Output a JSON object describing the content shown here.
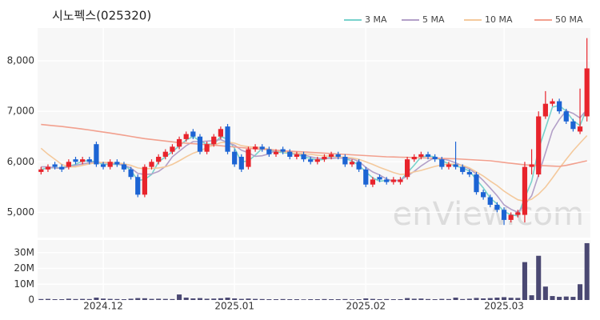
{
  "chart_data": {
    "type": "candlestick",
    "title": "시노펙스(025320)",
    "watermark": "enView.com",
    "categories": [
      null,
      null,
      null,
      null,
      null,
      null,
      null,
      null,
      null,
      "2024.12",
      null,
      null,
      null,
      null,
      null,
      null,
      null,
      null,
      null,
      null,
      null,
      null,
      null,
      null,
      null,
      null,
      null,
      null,
      "2025.01",
      null,
      null,
      null,
      null,
      null,
      null,
      null,
      null,
      null,
      null,
      null,
      null,
      null,
      null,
      null,
      null,
      null,
      null,
      "2025.02",
      null,
      null,
      null,
      null,
      null,
      null,
      null,
      null,
      null,
      null,
      null,
      null,
      null,
      null,
      null,
      null,
      null,
      null,
      null,
      "2025.03",
      null,
      null,
      null,
      null,
      null,
      null,
      null,
      null,
      null,
      null,
      null,
      null
    ],
    "open": [
      5800,
      5850,
      5950,
      5900,
      5900,
      6050,
      6000,
      6050,
      6350,
      5950,
      5900,
      6000,
      5950,
      5850,
      5700,
      5350,
      5900,
      6000,
      6100,
      6200,
      6300,
      6450,
      6600,
      6500,
      6200,
      6350,
      6500,
      6700,
      6200,
      6100,
      5900,
      6250,
      6300,
      6250,
      6150,
      6250,
      6200,
      6100,
      6150,
      6050,
      6000,
      6050,
      6100,
      6150,
      6100,
      5950,
      6000,
      5850,
      5550,
      5700,
      5650,
      5600,
      5600,
      5700,
      6050,
      6100,
      6150,
      6100,
      6050,
      5900,
      5950,
      5900,
      5800,
      5750,
      5400,
      5300,
      5150,
      5050,
      4850,
      4950,
      4950,
      5900,
      5750,
      6900,
      7150,
      7200,
      7000,
      6800,
      6600,
      6900
    ],
    "high": [
      5900,
      5950,
      6000,
      5950,
      6050,
      6100,
      6100,
      6100,
      6400,
      6000,
      6050,
      6050,
      6000,
      5900,
      5750,
      5950,
      6050,
      6150,
      6250,
      6350,
      6500,
      6600,
      6650,
      6550,
      6400,
      6550,
      6700,
      6750,
      6250,
      6150,
      6300,
      6350,
      6350,
      6300,
      6250,
      6300,
      6250,
      6200,
      6200,
      6100,
      6100,
      6150,
      6200,
      6200,
      6150,
      6050,
      6050,
      5900,
      5700,
      5750,
      5700,
      5700,
      5700,
      6100,
      6150,
      6200,
      6200,
      6150,
      6100,
      6000,
      6400,
      5950,
      5850,
      5800,
      5450,
      5350,
      5200,
      5100,
      5000,
      5050,
      6000,
      6250,
      7000,
      7400,
      7250,
      7250,
      7050,
      6850,
      7450,
      8450
    ],
    "low": [
      5750,
      5800,
      5850,
      5800,
      5850,
      5950,
      5950,
      5950,
      5900,
      5850,
      5850,
      5900,
      5800,
      5650,
      5300,
      5300,
      5850,
      5950,
      6050,
      6150,
      6250,
      6400,
      6450,
      6150,
      6150,
      6300,
      6450,
      6150,
      5900,
      5800,
      5850,
      6200,
      6200,
      6100,
      6100,
      6150,
      6050,
      6050,
      6000,
      5950,
      5950,
      6000,
      6050,
      6050,
      5900,
      5900,
      5800,
      5500,
      5500,
      5600,
      5550,
      5550,
      5550,
      5650,
      6000,
      6050,
      6050,
      6000,
      5850,
      5850,
      5850,
      5750,
      5700,
      5350,
      5250,
      5100,
      5000,
      4750,
      4800,
      4900,
      4800,
      5750,
      5700,
      6850,
      7100,
      6950,
      6750,
      6600,
      6550,
      6800
    ],
    "close": [
      5850,
      5900,
      5900,
      5850,
      6000,
      6000,
      6050,
      6000,
      5950,
      5900,
      6000,
      5950,
      5850,
      5700,
      5350,
      5900,
      6000,
      6100,
      6200,
      6300,
      6450,
      6550,
      6500,
      6200,
      6350,
      6500,
      6650,
      6200,
      5950,
      5850,
      6250,
      6300,
      6250,
      6150,
      6200,
      6200,
      6100,
      6150,
      6050,
      6000,
      6050,
      6100,
      6150,
      6100,
      5950,
      6000,
      5850,
      5550,
      5650,
      5650,
      5600,
      5650,
      5650,
      6050,
      6100,
      6150,
      6100,
      6050,
      5900,
      5950,
      5900,
      5800,
      5750,
      5400,
      5300,
      5150,
      5050,
      4850,
      4950,
      5000,
      5900,
      5950,
      6900,
      7150,
      7200,
      7000,
      6800,
      6650,
      6700,
      7850
    ],
    "up_color": "#e8242c",
    "down_color": "#1c64d4",
    "ylim": [
      4500,
      8650
    ],
    "yticks": [
      {
        "value": 5000,
        "label": "5,000"
      },
      {
        "value": 6000,
        "label": "6,000"
      },
      {
        "value": 7000,
        "label": "7,000"
      },
      {
        "value": 8000,
        "label": "8,000"
      }
    ],
    "grid": true,
    "moving_averages": [
      {
        "name": "3 MA",
        "color": "#78d2cc",
        "values": [
          5850,
          5880,
          5883,
          5883,
          5917,
          5950,
          6017,
          6017,
          6000,
          5950,
          5950,
          5950,
          5933,
          5833,
          5633,
          5650,
          5750,
          6000,
          6100,
          6200,
          6317,
          6433,
          6500,
          6417,
          6350,
          6350,
          6500,
          6450,
          6267,
          6000,
          6017,
          6133,
          6267,
          6233,
          6200,
          6183,
          6167,
          6150,
          6100,
          6067,
          6033,
          6050,
          6100,
          6117,
          6067,
          6017,
          5933,
          5800,
          5683,
          5617,
          5633,
          5633,
          5633,
          5783,
          5933,
          6100,
          6117,
          6100,
          6017,
          5967,
          5917,
          5883,
          5817,
          5650,
          5483,
          5283,
          5167,
          5017,
          4950,
          4933,
          5283,
          5617,
          6250,
          6667,
          7083,
          7117,
          7000,
          6817,
          6717,
          7067
        ]
      },
      {
        "name": "5 MA",
        "color": "#b3a0c8",
        "values": [
          5900,
          5900,
          5880,
          5870,
          5900,
          5930,
          5960,
          5980,
          6000,
          5980,
          5980,
          5960,
          5930,
          5880,
          5770,
          5750,
          5760,
          5810,
          5910,
          6100,
          6210,
          6320,
          6400,
          6400,
          6410,
          6420,
          6440,
          6380,
          6330,
          6230,
          6180,
          6110,
          6120,
          6160,
          6230,
          6220,
          6180,
          6160,
          6140,
          6100,
          6070,
          6070,
          6070,
          6080,
          6070,
          6060,
          6010,
          5890,
          5800,
          5740,
          5660,
          5620,
          5640,
          5720,
          5810,
          5920,
          6010,
          6090,
          6060,
          6030,
          5980,
          5920,
          5860,
          5760,
          5630,
          5480,
          5330,
          5150,
          5060,
          5000,
          5150,
          5330,
          5740,
          6180,
          6620,
          6840,
          7010,
          6960,
          6870,
          7040
        ]
      },
      {
        "name": "10 MA",
        "color": "#f4c99c",
        "values": [
          6270,
          6150,
          6050,
          5950,
          5900,
          5900,
          5930,
          5960,
          5980,
          5990,
          5990,
          5980,
          5960,
          5930,
          5880,
          5860,
          5870,
          5880,
          5900,
          5950,
          6020,
          6100,
          6170,
          6220,
          6280,
          6330,
          6380,
          6390,
          6370,
          6320,
          6300,
          6290,
          6280,
          6250,
          6230,
          6200,
          6180,
          6170,
          6160,
          6150,
          6130,
          6120,
          6110,
          6100,
          6090,
          6080,
          6050,
          6000,
          5950,
          5890,
          5840,
          5790,
          5750,
          5760,
          5800,
          5830,
          5870,
          5910,
          5940,
          5960,
          5950,
          5930,
          5880,
          5800,
          5720,
          5620,
          5530,
          5420,
          5330,
          5250,
          5220,
          5260,
          5360,
          5500,
          5680,
          5870,
          6050,
          6220,
          6370,
          6520
        ]
      },
      {
        "name": "50 MA",
        "color": "#f2a08e",
        "values": [
          6740,
          6727,
          6713,
          6700,
          6683,
          6667,
          6650,
          6630,
          6610,
          6590,
          6570,
          6548,
          6526,
          6504,
          6482,
          6460,
          6444,
          6428,
          6412,
          6396,
          6380,
          6370,
          6360,
          6350,
          6340,
          6330,
          6318,
          6306,
          6294,
          6282,
          6270,
          6260,
          6250,
          6240,
          6230,
          6220,
          6212,
          6204,
          6196,
          6188,
          6180,
          6172,
          6164,
          6156,
          6148,
          6140,
          6132,
          6124,
          6116,
          6108,
          6100,
          6096,
          6092,
          6088,
          6084,
          6080,
          6076,
          6072,
          6068,
          6064,
          6060,
          6052,
          6044,
          6036,
          6028,
          6020,
          6004,
          5988,
          5972,
          5956,
          5940,
          5934,
          5928,
          5922,
          5916,
          5910,
          5930,
          5960,
          5990,
          6020
        ]
      }
    ],
    "volume": {
      "color": "#4a4872",
      "values": [
        600000,
        700000,
        500000,
        500000,
        800000,
        600000,
        700000,
        600000,
        1500000,
        900000,
        700000,
        600000,
        500000,
        800000,
        1200000,
        1100000,
        700000,
        800000,
        700000,
        600000,
        3500000,
        1500000,
        1000000,
        1200000,
        800000,
        900000,
        1100000,
        1500000,
        1000000,
        700000,
        900000,
        700000,
        600000,
        500000,
        500000,
        600000,
        500000,
        500000,
        400000,
        500000,
        500000,
        600000,
        500000,
        500000,
        600000,
        400000,
        500000,
        1000000,
        700000,
        500000,
        600000,
        500000,
        500000,
        1200000,
        800000,
        900000,
        600000,
        500000,
        700000,
        600000,
        1500000,
        600000,
        800000,
        1300000,
        1000000,
        1200000,
        1500000,
        1800000,
        1400000,
        1300000,
        24000000,
        3000000,
        28000000,
        8500000,
        2500000,
        2000000,
        2200000,
        2000000,
        10000000,
        36000000
      ],
      "ylim": [
        0,
        38000000
      ],
      "yticks": [
        0,
        {
          "value": 10000000,
          "label": "10M"
        },
        {
          "value": 20000000,
          "label": "20M"
        },
        {
          "value": 30000000,
          "label": "30M"
        }
      ]
    }
  }
}
